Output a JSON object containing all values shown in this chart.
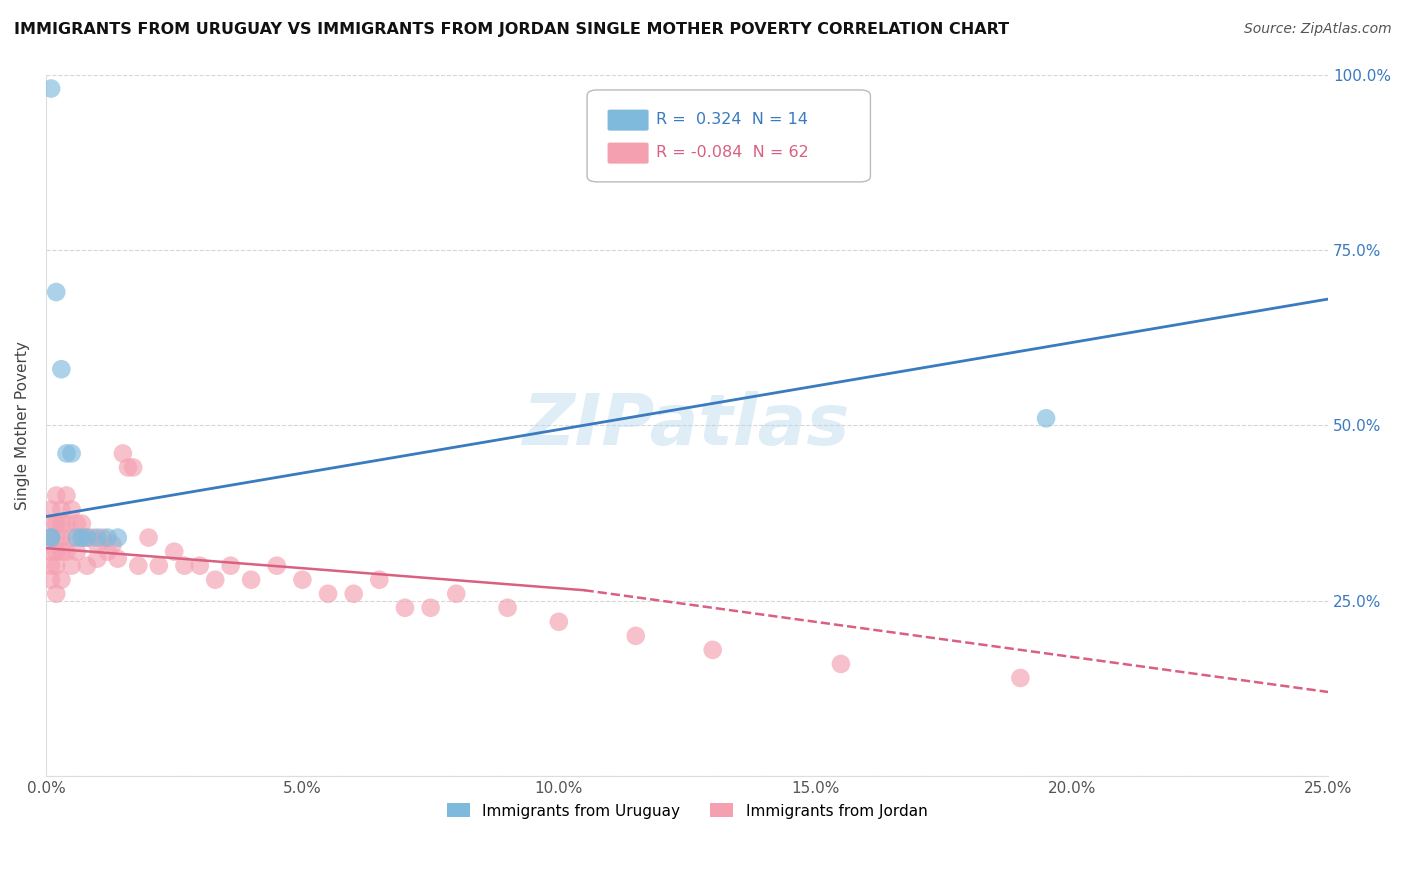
{
  "title": "IMMIGRANTS FROM URUGUAY VS IMMIGRANTS FROM JORDAN SINGLE MOTHER POVERTY CORRELATION CHART",
  "source": "Source: ZipAtlas.com",
  "ylabel": "Single Mother Poverty",
  "xlabel": "",
  "xlim": [
    0.0,
    0.25
  ],
  "ylim": [
    0.0,
    1.0
  ],
  "xticks": [
    0.0,
    0.05,
    0.1,
    0.15,
    0.2,
    0.25
  ],
  "xtick_labels": [
    "0.0%",
    "5.0%",
    "10.0%",
    "15.0%",
    "20.0%",
    "25.0%"
  ],
  "ytick_labels_left": [
    "",
    "25.0%",
    "50.0%",
    "75.0%",
    "100.0%"
  ],
  "ytick_labels_right": [
    "",
    "25.0%",
    "50.0%",
    "75.0%",
    "100.0%"
  ],
  "yticks": [
    0.0,
    0.25,
    0.5,
    0.75,
    1.0
  ],
  "uruguay_color": "#7fbadc",
  "jordan_color": "#f4a0b0",
  "uruguay_R": 0.324,
  "uruguay_N": 14,
  "jordan_R": -0.084,
  "jordan_N": 62,
  "watermark": "ZIPatlas",
  "legend_label_uruguay": "Immigrants from Uruguay",
  "legend_label_jordan": "Immigrants from Jordan",
  "uru_line_x0": 0.0,
  "uru_line_y0": 0.37,
  "uru_line_x1": 0.25,
  "uru_line_y1": 0.68,
  "jor_line_x0": 0.0,
  "jor_line_y0": 0.325,
  "jor_line_x1_solid": 0.105,
  "jor_line_y1_solid": 0.265,
  "jor_line_x1_dash": 0.25,
  "jor_line_y1_dash": 0.12,
  "uruguay_scatter_x": [
    0.001,
    0.002,
    0.003,
    0.004,
    0.005,
    0.006,
    0.007,
    0.008,
    0.01,
    0.012,
    0.014,
    0.195,
    0.001,
    0.001
  ],
  "uruguay_scatter_y": [
    0.98,
    0.69,
    0.58,
    0.46,
    0.46,
    0.34,
    0.34,
    0.34,
    0.34,
    0.34,
    0.34,
    0.51,
    0.34,
    0.34
  ],
  "jordan_scatter_x": [
    0.001,
    0.001,
    0.001,
    0.001,
    0.001,
    0.002,
    0.002,
    0.002,
    0.002,
    0.002,
    0.003,
    0.003,
    0.003,
    0.003,
    0.004,
    0.004,
    0.004,
    0.005,
    0.005,
    0.005,
    0.006,
    0.006,
    0.007,
    0.007,
    0.008,
    0.008,
    0.009,
    0.01,
    0.01,
    0.011,
    0.012,
    0.013,
    0.014,
    0.015,
    0.016,
    0.017,
    0.018,
    0.02,
    0.022,
    0.025,
    0.027,
    0.03,
    0.033,
    0.036,
    0.04,
    0.045,
    0.05,
    0.055,
    0.06,
    0.065,
    0.07,
    0.075,
    0.08,
    0.09,
    0.1,
    0.115,
    0.13,
    0.155,
    0.19,
    0.001,
    0.002,
    0.003
  ],
  "jordan_scatter_y": [
    0.38,
    0.36,
    0.34,
    0.32,
    0.3,
    0.4,
    0.36,
    0.34,
    0.32,
    0.3,
    0.38,
    0.36,
    0.34,
    0.32,
    0.4,
    0.36,
    0.32,
    0.38,
    0.34,
    0.3,
    0.36,
    0.32,
    0.36,
    0.34,
    0.34,
    0.3,
    0.34,
    0.33,
    0.31,
    0.34,
    0.32,
    0.33,
    0.31,
    0.46,
    0.44,
    0.44,
    0.3,
    0.34,
    0.3,
    0.32,
    0.3,
    0.3,
    0.28,
    0.3,
    0.28,
    0.3,
    0.28,
    0.26,
    0.26,
    0.28,
    0.24,
    0.24,
    0.26,
    0.24,
    0.22,
    0.2,
    0.18,
    0.16,
    0.14,
    0.28,
    0.26,
    0.28
  ]
}
